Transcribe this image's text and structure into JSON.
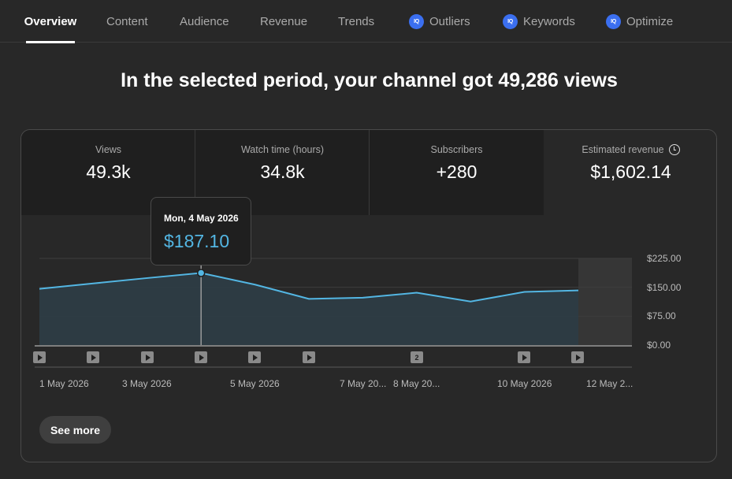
{
  "tabs": [
    {
      "label": "Overview",
      "active": true,
      "icon": null
    },
    {
      "label": "Content",
      "active": false,
      "icon": null
    },
    {
      "label": "Audience",
      "active": false,
      "icon": null
    },
    {
      "label": "Revenue",
      "active": false,
      "icon": null
    },
    {
      "label": "Trends",
      "active": false,
      "icon": null
    },
    {
      "label": "Outliers",
      "active": false,
      "icon": "vidiq-icon"
    },
    {
      "label": "Keywords",
      "active": false,
      "icon": "vidiq-icon"
    },
    {
      "label": "Optimize",
      "active": false,
      "icon": "vidiq-icon"
    }
  ],
  "iq_icon_text": "IQ",
  "headline": "In the selected period, your channel got 49,286 views",
  "metrics": [
    {
      "label": "Views",
      "value": "49.3k",
      "selected": false
    },
    {
      "label": "Watch time (hours)",
      "value": "34.8k",
      "selected": false
    },
    {
      "label": "Subscribers",
      "value": "+280",
      "selected": false
    },
    {
      "label": "Estimated revenue",
      "value": "$1,602.14",
      "selected": true,
      "icon": "clock-icon"
    }
  ],
  "tooltip": {
    "date": "Mon, 4 May 2026",
    "value": "$187.10"
  },
  "see_more_label": "See more",
  "colors": {
    "line": "#53b6e3",
    "area": "#2d3c44",
    "background": "#282828",
    "accent_white": "#ffffff"
  },
  "chart_data": {
    "type": "area",
    "series": [
      {
        "values": [
          146,
          160,
          174,
          187.1,
          157,
          120,
          123,
          136,
          113,
          138,
          142
        ]
      }
    ],
    "ylim": [
      0,
      225
    ],
    "yticks": [
      "$225.00",
      "$150.00",
      "$75.00",
      "$0.00"
    ],
    "xticks": [
      "1 May 2026",
      "3 May 2026",
      "5 May 2026",
      "7 May 20...",
      "8 May 20...",
      "10 May 2026",
      "12 May 2..."
    ],
    "highlighted_point": {
      "date": "Mon, 4 May 2026",
      "value": 187.1
    },
    "markers": [
      {
        "type": "video"
      },
      {
        "type": "video"
      },
      {
        "type": "video"
      },
      {
        "type": "video"
      },
      {
        "type": "video"
      },
      {
        "type": "video"
      },
      {
        "type": "group",
        "count": "2"
      },
      {
        "type": "video"
      },
      {
        "type": "video"
      }
    ],
    "grid": true,
    "projected_shading": true
  }
}
